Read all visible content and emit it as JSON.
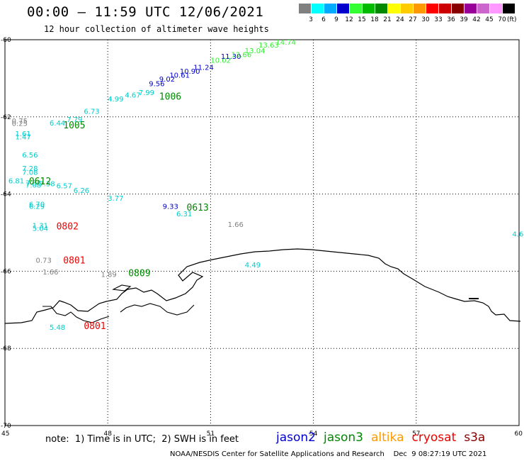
{
  "header": {
    "title": "00:00 – 11:59 UTC 12/06/2021",
    "subtitle": "12 hour collection of altimeter wave heights"
  },
  "legend": {
    "colors": [
      "#808080",
      "#00ffff",
      "#00aaff",
      "#0000cc",
      "#33ff33",
      "#00bb00",
      "#008800",
      "#ffff00",
      "#ffcc00",
      "#ff9900",
      "#ff0000",
      "#cc0000",
      "#880000",
      "#990099",
      "#cc66cc",
      "#ff99ff",
      "#000000"
    ],
    "labels": [
      "3",
      "6",
      "9",
      "12",
      "15",
      "18",
      "21",
      "24",
      "27",
      "30",
      "33",
      "36",
      "39",
      "42",
      "45",
      "70"
    ],
    "unit": "(ft)"
  },
  "footer": {
    "note": "note:  1) Time is in UTC;  2) SWH is in feet",
    "credit": "NOAA/NESDIS Center for Satellite Applications and Research    Dec  9 08:27:19 UTC 2021"
  },
  "satellites": [
    {
      "name": "jason2",
      "color": "#0000cc"
    },
    {
      "name": "jason3",
      "color": "#008800"
    },
    {
      "name": "altika",
      "color": "#ff9900"
    },
    {
      "name": "cryosat",
      "color": "#ee0000"
    },
    {
      "name": "s3a",
      "color": "#880000"
    }
  ],
  "chart_data": {
    "type": "scatter",
    "title": "00:00 – 11:59 UTC 12/06/2021",
    "subtitle": "12 hour collection of altimeter wave heights",
    "x_ticks": [
      "45",
      "48",
      "51",
      "54",
      "57",
      "60"
    ],
    "y_ticks": [
      "-60",
      "-62",
      "-64",
      "-66",
      "-68",
      "-70"
    ],
    "xlim": [
      45,
      60
    ],
    "ylim": [
      -70,
      -60
    ],
    "grid": true,
    "observations": [
      {
        "lon": 45.2,
        "lat": -62.17,
        "value": "0.75",
        "color": "#808080"
      },
      {
        "lon": 45.2,
        "lat": -62.23,
        "value": "0.25",
        "color": "#808080"
      },
      {
        "lon": 45.3,
        "lat": -62.5,
        "value": "1.61",
        "color": "#00cccc"
      },
      {
        "lon": 45.3,
        "lat": -62.58,
        "value": "1.47",
        "color": "#00cccc"
      },
      {
        "lon": 45.5,
        "lat": -63.05,
        "value": "6.56",
        "color": "#00cccc"
      },
      {
        "lon": 45.5,
        "lat": -63.4,
        "value": "7.28",
        "color": "#00cccc"
      },
      {
        "lon": 45.5,
        "lat": -63.5,
        "value": "7.08",
        "color": "#00cccc"
      },
      {
        "lon": 45.1,
        "lat": -63.72,
        "value": "6.81",
        "color": "#00cccc"
      },
      {
        "lon": 45.6,
        "lat": -63.78,
        "value": "7.30",
        "color": "#00cccc"
      },
      {
        "lon": 45.6,
        "lat": -63.83,
        "value": "7.08",
        "color": "#00cccc"
      },
      {
        "lon": 46.0,
        "lat": -63.8,
        "value": "7.38",
        "color": "#00cccc"
      },
      {
        "lon": 46.5,
        "lat": -63.85,
        "value": "6.57",
        "color": "#00cccc"
      },
      {
        "lon": 47.0,
        "lat": -63.97,
        "value": "6.26",
        "color": "#00cccc"
      },
      {
        "lon": 48.0,
        "lat": -64.17,
        "value": "3.77",
        "color": "#00cccc"
      },
      {
        "lon": 45.7,
        "lat": -64.33,
        "value": "6.70",
        "color": "#00cccc"
      },
      {
        "lon": 45.7,
        "lat": -64.38,
        "value": "6.29",
        "color": "#00cccc"
      },
      {
        "lon": 45.8,
        "lat": -64.88,
        "value": "1.31",
        "color": "#00cccc"
      },
      {
        "lon": 45.8,
        "lat": -64.95,
        "value": "5.04",
        "color": "#00cccc"
      },
      {
        "lon": 46.3,
        "lat": -62.22,
        "value": "6.44",
        "color": "#00cccc"
      },
      {
        "lon": 46.8,
        "lat": -62.13,
        "value": "7.79",
        "color": "#00cccc"
      },
      {
        "lon": 47.3,
        "lat": -61.92,
        "value": "6.73",
        "color": "#00cccc"
      },
      {
        "lon": 48.0,
        "lat": -61.6,
        "value": "4.99",
        "color": "#00cccc"
      },
      {
        "lon": 48.5,
        "lat": -61.5,
        "value": "4.67",
        "color": "#00cccc"
      },
      {
        "lon": 48.9,
        "lat": -61.43,
        "value": "7.99",
        "color": "#00cccc"
      },
      {
        "lon": 49.2,
        "lat": -61.2,
        "value": "9.56",
        "color": "#0000cc"
      },
      {
        "lon": 49.5,
        "lat": -61.08,
        "value": "9.02",
        "color": "#0000cc"
      },
      {
        "lon": 49.8,
        "lat": -60.98,
        "value": "10.61",
        "color": "#0000cc"
      },
      {
        "lon": 50.1,
        "lat": -60.88,
        "value": "10.90",
        "color": "#0000cc"
      },
      {
        "lon": 50.5,
        "lat": -60.78,
        "value": "11.24",
        "color": "#0000cc"
      },
      {
        "lon": 51.0,
        "lat": -60.6,
        "value": "10.02",
        "color": "#33ee33"
      },
      {
        "lon": 51.3,
        "lat": -60.5,
        "value": "11.30",
        "color": "#0000cc"
      },
      {
        "lon": 51.6,
        "lat": -60.45,
        "value": "13.66",
        "color": "#33ee33"
      },
      {
        "lon": 52.0,
        "lat": -60.35,
        "value": "13.04",
        "color": "#33ee33"
      },
      {
        "lon": 52.4,
        "lat": -60.2,
        "value": "13.63",
        "color": "#33ee33"
      },
      {
        "lon": 52.9,
        "lat": -60.13,
        "value": "14.74",
        "color": "#33ee33"
      },
      {
        "lon": 49.6,
        "lat": -64.38,
        "value": "9.33",
        "color": "#0000cc"
      },
      {
        "lon": 50.0,
        "lat": -64.58,
        "value": "6.31",
        "color": "#00cccc"
      },
      {
        "lon": 51.5,
        "lat": -64.85,
        "value": "1.66",
        "color": "#808080"
      },
      {
        "lon": 45.9,
        "lat": -65.78,
        "value": "0.73",
        "color": "#808080"
      },
      {
        "lon": 46.1,
        "lat": -66.08,
        "value": "1.66",
        "color": "#808080"
      },
      {
        "lon": 47.8,
        "lat": -66.15,
        "value": "1.89",
        "color": "#808080"
      },
      {
        "lon": 52.0,
        "lat": -65.9,
        "value": "4.49",
        "color": "#00cccc"
      },
      {
        "lon": 46.3,
        "lat": -67.52,
        "value": "5.48",
        "color": "#00cccc"
      },
      {
        "lon": 59.8,
        "lat": -65.1,
        "value": "4.6",
        "color": "#00cccc"
      }
    ],
    "times": [
      {
        "lon": 46.7,
        "lat": -62.3,
        "label": "1005",
        "color": "#008800"
      },
      {
        "lon": 49.5,
        "lat": -61.55,
        "label": "1006",
        "color": "#008800"
      },
      {
        "lon": 45.7,
        "lat": -63.75,
        "label": "0612",
        "color": "#008800"
      },
      {
        "lon": 50.3,
        "lat": -64.43,
        "label": "0613",
        "color": "#008800"
      },
      {
        "lon": 46.5,
        "lat": -64.92,
        "label": "0802",
        "color": "#ee0000"
      },
      {
        "lon": 46.7,
        "lat": -65.8,
        "label": "0801",
        "color": "#ee0000"
      },
      {
        "lon": 48.6,
        "lat": -66.13,
        "label": "0809",
        "color": "#008800"
      },
      {
        "lon": 47.3,
        "lat": -67.5,
        "label": "0801",
        "color": "#ee0000"
      }
    ]
  }
}
